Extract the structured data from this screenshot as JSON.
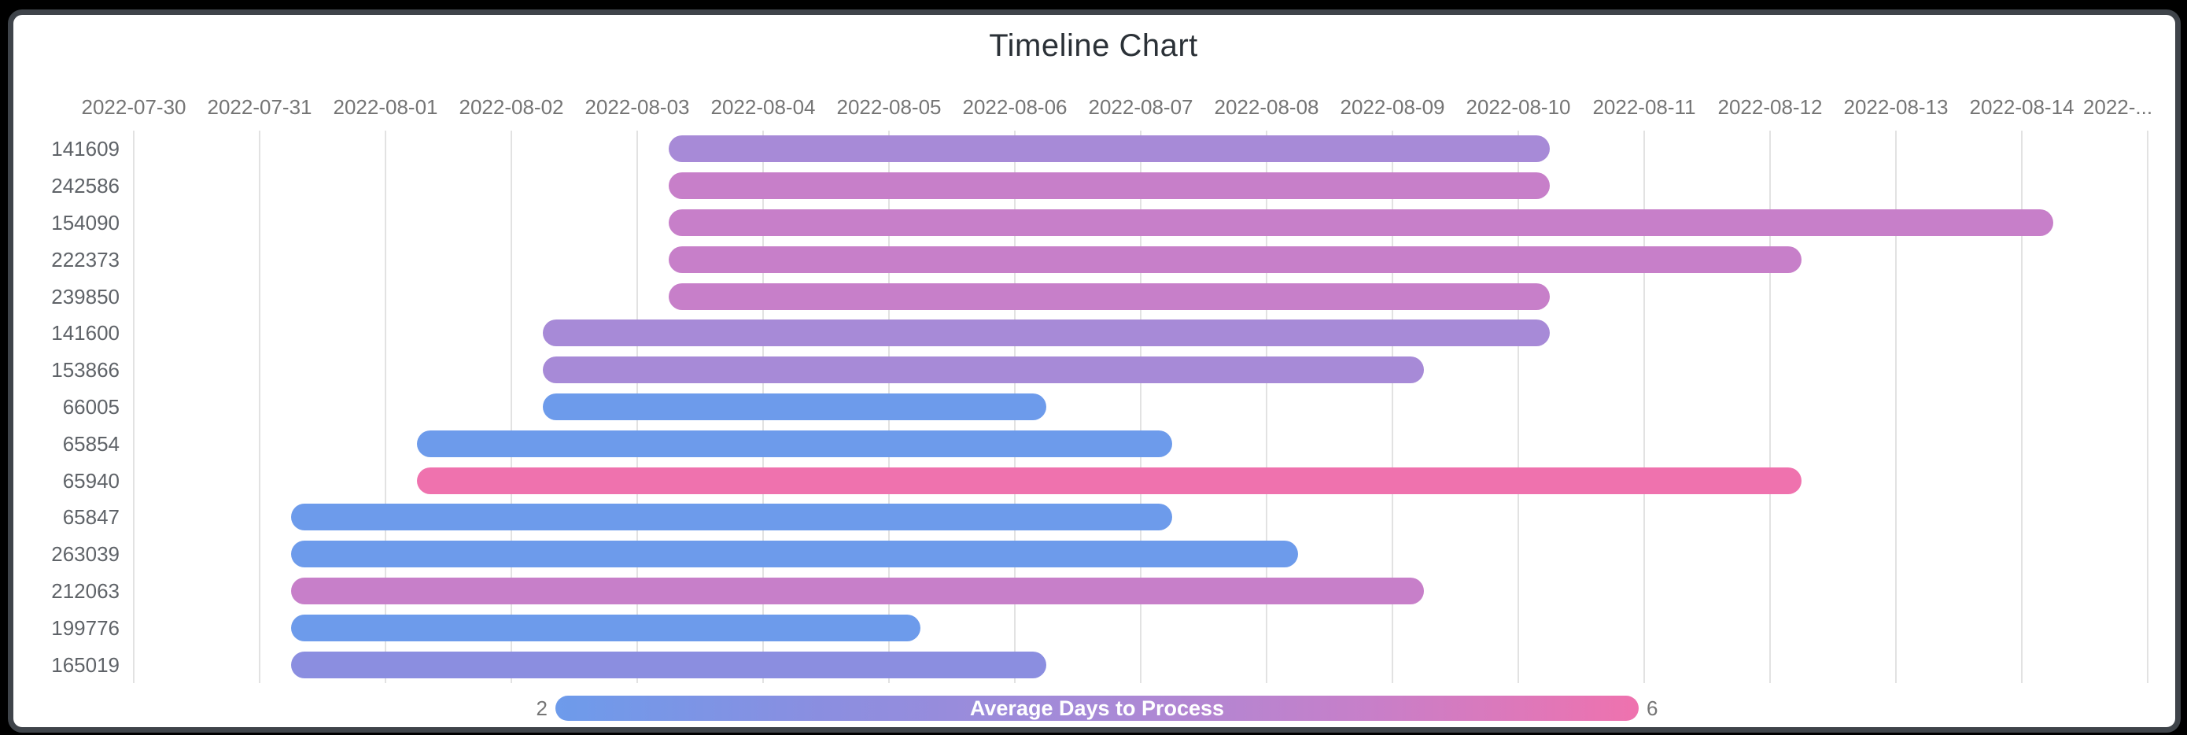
{
  "window": {
    "background": "#000000",
    "card_background": "#ffffff",
    "card_border_color": "#3f444a"
  },
  "chart_data": {
    "type": "bar",
    "subtype": "horizontal-timeline-gantt",
    "title": "Timeline Chart",
    "title_color": "#2b3137",
    "grid": true,
    "gridline_color": "#e2e2e2",
    "x_axis": {
      "position": "top",
      "label_color": "#757575",
      "tick_labels": [
        "2022-07-30",
        "2022-07-31",
        "2022-08-01",
        "2022-08-02",
        "2022-08-03",
        "2022-08-04",
        "2022-08-05",
        "2022-08-06",
        "2022-08-07",
        "2022-08-08",
        "2022-08-09",
        "2022-08-10",
        "2022-08-11",
        "2022-08-12",
        "2022-08-13",
        "2022-08-14",
        "2022-..."
      ]
    },
    "y_axis": {
      "label_color": "#5f6368"
    },
    "rows": [
      {
        "label": "141609",
        "start": "2022-08-03",
        "end": "2022-08-10",
        "duration_days": 7,
        "color": "#a78ad7"
      },
      {
        "label": "242586",
        "start": "2022-08-03",
        "end": "2022-08-10",
        "duration_days": 7,
        "color": "#c77fc9"
      },
      {
        "label": "154090",
        "start": "2022-08-03",
        "end": "2022-08-14",
        "duration_days": 11,
        "color": "#c77fc9"
      },
      {
        "label": "222373",
        "start": "2022-08-03",
        "end": "2022-08-12",
        "duration_days": 9,
        "color": "#c77fc9"
      },
      {
        "label": "239850",
        "start": "2022-08-03",
        "end": "2022-08-10",
        "duration_days": 7,
        "color": "#c77fc9"
      },
      {
        "label": "141600",
        "start": "2022-08-02",
        "end": "2022-08-10",
        "duration_days": 8,
        "color": "#a78ad7"
      },
      {
        "label": "153866",
        "start": "2022-08-02",
        "end": "2022-08-09",
        "duration_days": 7,
        "color": "#a78ad7"
      },
      {
        "label": "66005",
        "start": "2022-08-02",
        "end": "2022-08-06",
        "duration_days": 4,
        "color": "#6d9beb"
      },
      {
        "label": "65854",
        "start": "2022-08-01",
        "end": "2022-08-07",
        "duration_days": 6,
        "color": "#6d9beb"
      },
      {
        "label": "65940",
        "start": "2022-08-01",
        "end": "2022-08-12",
        "duration_days": 11,
        "color": "#ef72ae"
      },
      {
        "label": "65847",
        "start": "2022-07-31",
        "end": "2022-08-07",
        "duration_days": 7,
        "color": "#6d9beb"
      },
      {
        "label": "263039",
        "start": "2022-07-31",
        "end": "2022-08-08",
        "duration_days": 8,
        "color": "#6d9beb"
      },
      {
        "label": "212063",
        "start": "2022-07-31",
        "end": "2022-08-09",
        "duration_days": 9,
        "color": "#c77fc9"
      },
      {
        "label": "199776",
        "start": "2022-07-31",
        "end": "2022-08-05",
        "duration_days": 5,
        "color": "#6d9beb"
      },
      {
        "label": "165019",
        "start": "2022-07-31",
        "end": "2022-08-06",
        "duration_days": 6,
        "color": "#8b8ee0"
      }
    ],
    "legend": {
      "title": "Average Days to Process",
      "title_color": "#ffffff",
      "min_label": "2",
      "max_label": "6",
      "value_label_color": "#757575",
      "gradient_stops": [
        "#6d9beb",
        "#8b8ee0",
        "#a78ad7",
        "#c77fc9",
        "#ef72ae"
      ]
    }
  }
}
